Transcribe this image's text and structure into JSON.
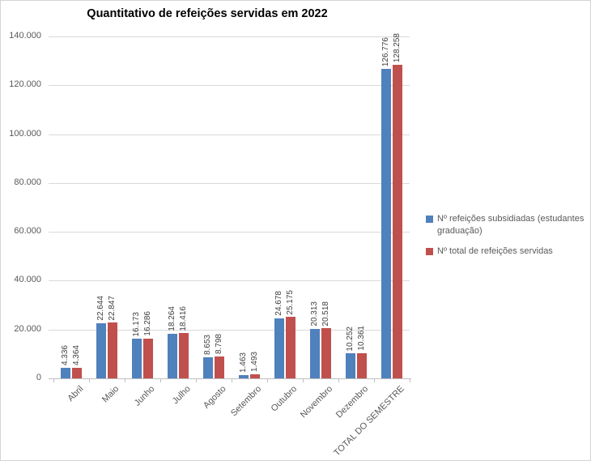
{
  "chart_data": {
    "type": "bar",
    "title": "Quantitativo de refeições servidas em 2022",
    "categories": [
      "Abril",
      "Maio",
      "Junho",
      "Julho",
      "Agosto",
      "Setembro",
      "Outubro",
      "Novembro",
      "Dezembro",
      "TOTAL DO SEMESTRE"
    ],
    "series": [
      {
        "id": "subsidiadas",
        "name": "Nº refeições subsidiadas (estudantes graduação)",
        "color": "#4F81BD",
        "values": [
          4336,
          22644,
          16173,
          18264,
          8653,
          1463,
          24678,
          20313,
          10252,
          126776
        ],
        "labels": [
          "4.336",
          "22.644",
          "16.173",
          "18.264",
          "8.653",
          "1.463",
          "24.678",
          "20.313",
          "10.252",
          "126.776"
        ]
      },
      {
        "id": "total",
        "name": "Nº total de refeições servidas",
        "color": "#C0504D",
        "values": [
          4364,
          22847,
          16286,
          18416,
          8798,
          1493,
          25175,
          20518,
          10361,
          128258
        ],
        "labels": [
          "4.364",
          "22.847",
          "16.286",
          "18.416",
          "8.798",
          "1.493",
          "25.175",
          "20.518",
          "10.361",
          "128.258"
        ]
      }
    ],
    "ylim": [
      0,
      140000
    ],
    "ytick_interval": 20000,
    "ytick_labels": [
      "0",
      "20.000",
      "40.000",
      "60.000",
      "80.000",
      "100.000",
      "120.000",
      "140.000"
    ],
    "grid": true,
    "legend_position": "right",
    "colors": {
      "grid": "#D9D9D9",
      "axis": "#BFBFBF",
      "axis_text": "#595959",
      "data_label_text": "#404040",
      "title_text": "#000000",
      "background": "#FFFFFF"
    }
  }
}
